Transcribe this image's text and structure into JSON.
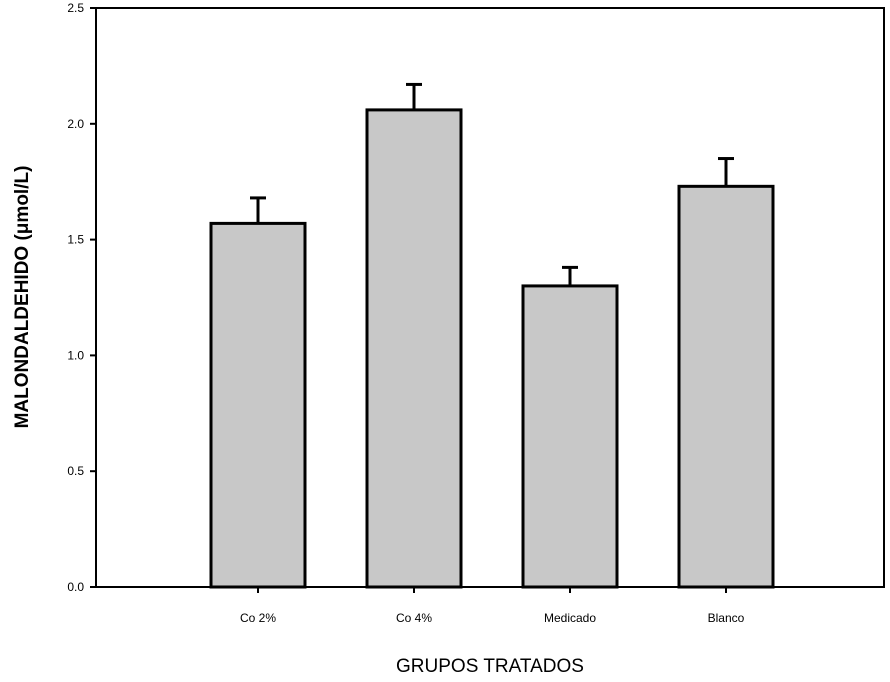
{
  "chart_data": {
    "type": "bar",
    "categories": [
      "Co 2%",
      "Co 4%",
      "Medicado",
      "Blanco"
    ],
    "values": [
      1.57,
      2.06,
      1.3,
      1.73
    ],
    "error_bars": [
      0.11,
      0.11,
      0.08,
      0.12
    ],
    "xlabel": "GRUPOS TRATADOS",
    "ylabel": "MALONDALDEHIDO (μmol/L)",
    "ylim": [
      0,
      2.5
    ],
    "yticks": [
      "0.0",
      "0.5",
      "1.0",
      "1.5",
      "2.0",
      "2.5"
    ],
    "grid": false,
    "bar_color": "#c8c8c8",
    "edge_color": "#000000"
  }
}
